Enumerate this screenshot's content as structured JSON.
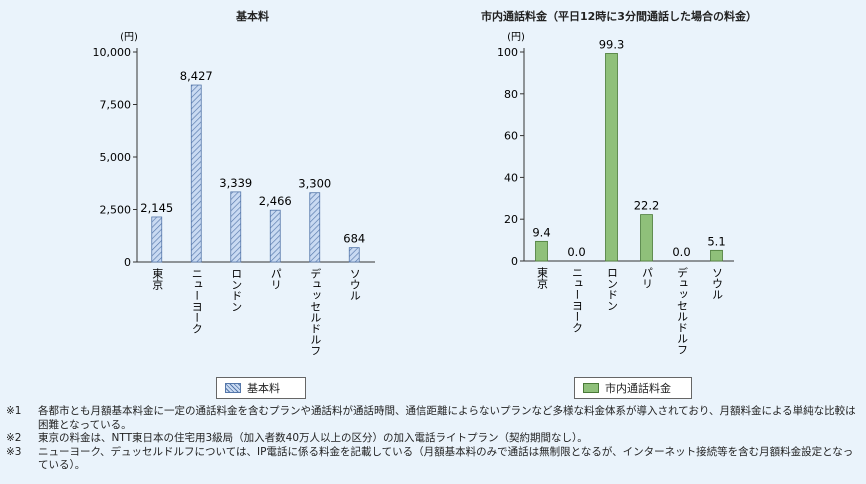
{
  "chart_data": [
    {
      "type": "bar",
      "title": "基本料",
      "unit_label": "(円)",
      "categories": [
        "東京",
        "ニューヨーク",
        "ロンドン",
        "パリ",
        "デュッセルドルフ",
        "ソウル"
      ],
      "values": [
        2145,
        8427,
        3339,
        2466,
        3300,
        684
      ],
      "value_labels": [
        "2,145",
        "8,427",
        "3,339",
        "2,466",
        "3,300",
        "684"
      ],
      "yticks": [
        "0",
        "2,500",
        "5,000",
        "7,500",
        "10,000"
      ],
      "ylim": [
        0,
        10000
      ],
      "legend": "基本料",
      "color": "#a9c4e8"
    },
    {
      "type": "bar",
      "title": "市内通話料金（平日12時に3分間通話した場合の料金）",
      "unit_label": "(円)",
      "categories": [
        "東京",
        "ニューヨーク",
        "ロンドン",
        "パリ",
        "デュッセルドルフ",
        "ソウル"
      ],
      "values": [
        9.4,
        0.0,
        99.3,
        22.2,
        0.0,
        5.1
      ],
      "value_labels": [
        "9.4",
        "0.0",
        "99.3",
        "22.2",
        "0.0",
        "5.1"
      ],
      "yticks": [
        "0",
        "20",
        "40",
        "60",
        "80",
        "100"
      ],
      "ylim": [
        0,
        100
      ],
      "legend": "市内通話料金",
      "color": "#8fc07a"
    }
  ],
  "notes": [
    {
      "mark": "※1",
      "text": "各都市とも月額基本料金に一定の通話料金を含むプランや通話料が通話時間、通信距離によらないプランなど多様な料金体系が導入されており、月額料金による単純な比較は困難となっている。"
    },
    {
      "mark": "※2",
      "text": "東京の料金は、NTT東日本の住宅用3級局（加入者数40万人以上の区分）の加入電話ライトプラン（契約期間なし）。"
    },
    {
      "mark": "※3",
      "text": "ニューヨーク、デュッセルドルフについては、IP電話に係る料金を記載している（月額基本料のみで通話は無制限となるが、インターネット接続等を含む月額料金設定となっている）。"
    }
  ]
}
